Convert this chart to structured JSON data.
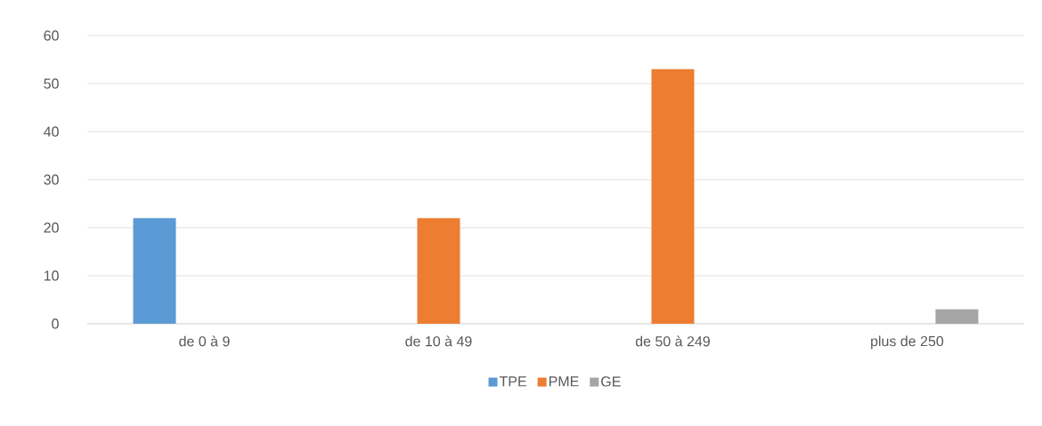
{
  "chart_data": {
    "type": "bar",
    "categories": [
      "de 0 à 9",
      "de 10 à 49",
      "de 50 à 249",
      "plus de 250"
    ],
    "series": [
      {
        "name": "TPE",
        "color": "#5b9bd5",
        "values": [
          22,
          0,
          0,
          0
        ]
      },
      {
        "name": "PME",
        "color": "#ed7d31",
        "values": [
          0,
          22,
          53,
          0
        ]
      },
      {
        "name": "GE",
        "color": "#a5a5a5",
        "values": [
          0,
          0,
          0,
          3
        ]
      }
    ],
    "ylim": [
      0,
      60
    ],
    "yticks": [
      0,
      10,
      20,
      30,
      40,
      50,
      60
    ],
    "grid": "y",
    "legend": "bottom"
  }
}
